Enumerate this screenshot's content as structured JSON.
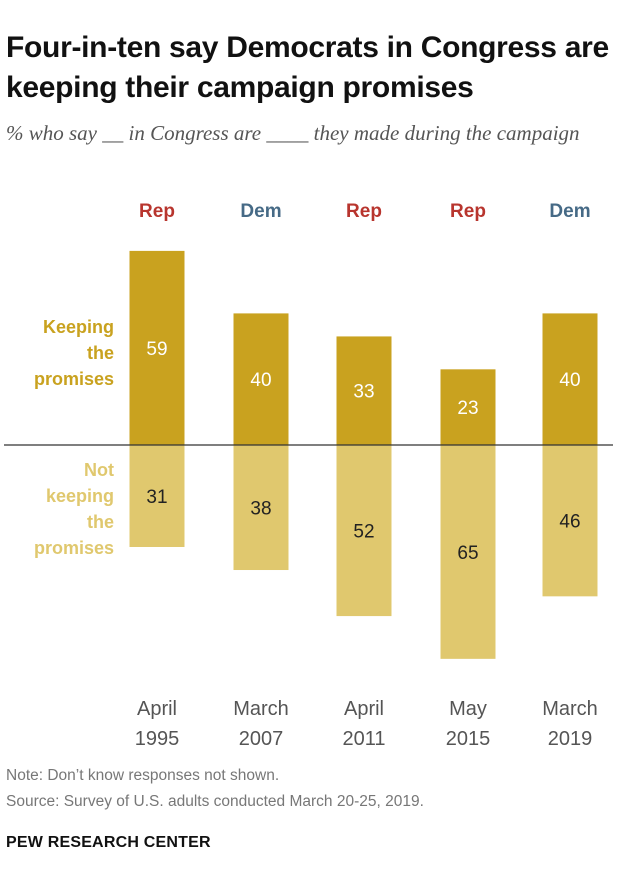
{
  "title": "Four-in-ten say Democrats in Congress are keeping their campaign promises",
  "subtitle": "% who say __ in Congress are ____ they made during the campaign",
  "legend": {
    "keeping_lines": [
      "Keeping",
      "the",
      "promises"
    ],
    "not_keeping_lines": [
      "Not",
      "keeping",
      "the",
      "promises"
    ]
  },
  "colors": {
    "keeping": "#c9a21f",
    "not_keeping": "#e0c86e",
    "rep": "#b8352e",
    "dem": "#466a86",
    "baseline": "#333333",
    "keeping_value_text": "#ffffff",
    "not_keeping_value_text": "#222222"
  },
  "chart_data": {
    "type": "bar",
    "title": "Four-in-ten say Democrats in Congress are keeping their campaign promises",
    "subtitle": "% who say __ in Congress are ____ they made during the campaign",
    "categories": [
      {
        "party": "Rep",
        "month": "April",
        "year": "1995"
      },
      {
        "party": "Dem",
        "month": "March",
        "year": "2007"
      },
      {
        "party": "Rep",
        "month": "April",
        "year": "2011"
      },
      {
        "party": "Rep",
        "month": "May",
        "year": "2015"
      },
      {
        "party": "Dem",
        "month": "March",
        "year": "2019"
      }
    ],
    "series": [
      {
        "name": "Keeping the promises",
        "values": [
          59,
          40,
          33,
          23,
          40
        ]
      },
      {
        "name": "Not keeping the promises",
        "values": [
          31,
          38,
          52,
          65,
          46
        ]
      }
    ],
    "layout": "diverging"
  },
  "footer": {
    "note": "Note: Don’t know responses not shown.",
    "source": "Source: Survey of U.S. adults conducted March 20-25, 2019.",
    "brand": "PEW RESEARCH CENTER"
  }
}
